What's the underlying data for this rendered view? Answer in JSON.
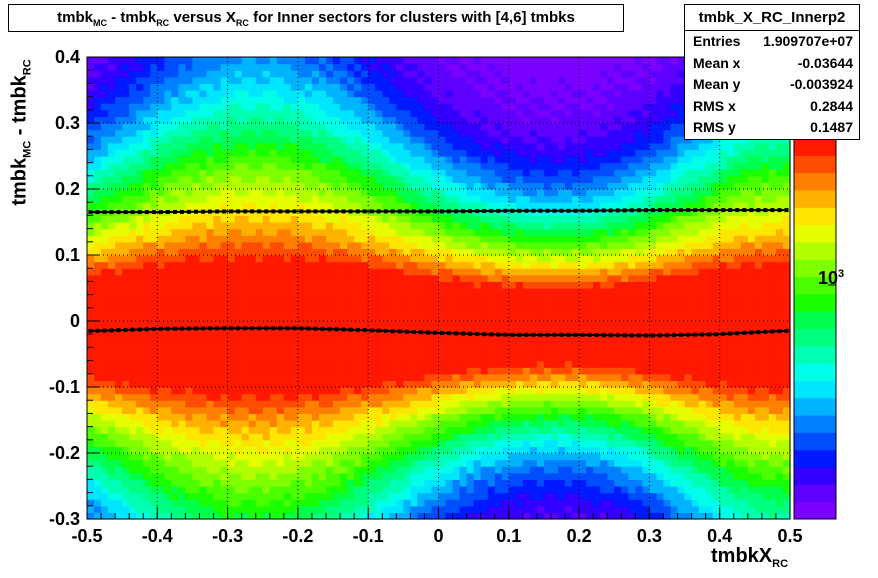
{
  "title": {
    "parts": [
      "tmbk",
      "MC",
      " - tmbk",
      "RC",
      " versus X",
      "RC",
      " for Inner sectors for clusters with [4,6] tmbks"
    ]
  },
  "stats": {
    "name": "tmbk_X_RC_Innerp2",
    "rows": [
      {
        "label": "Entries",
        "value": "1.909707e+07"
      },
      {
        "label": "Mean x",
        "value": "-0.03644"
      },
      {
        "label": "Mean y",
        "value": "-0.003924"
      },
      {
        "label": "RMS x",
        "value": "0.2844"
      },
      {
        "label": "RMS y",
        "value": "0.1487"
      }
    ]
  },
  "axis_labels": {
    "y_main": "tmbk",
    "y_sub1": "MC",
    "y_mid": " - tmbk",
    "y_sub2": "RC",
    "x_main": "tmbkX",
    "x_sub": "RC",
    "z_base": "10",
    "z_exp": "3"
  },
  "colors": {
    "palette": [
      "#7a00ff",
      "#5e00ff",
      "#3300ff",
      "#0019ff",
      "#004cff",
      "#0080ff",
      "#00b3ff",
      "#00e6ff",
      "#00ffe6",
      "#00ffb3",
      "#00ff80",
      "#00ff4c",
      "#19ff00",
      "#4cff00",
      "#80ff00",
      "#b3ff00",
      "#e6ff00",
      "#ffe600",
      "#ffb300",
      "#ff8000",
      "#ff4c00",
      "#ff1900"
    ]
  },
  "chart_data": {
    "type": "heatmap",
    "xlim": [
      -0.5,
      0.5
    ],
    "ylim": [
      -0.3,
      0.4
    ],
    "x_ticks": [
      "-0.5",
      "-0.4",
      "-0.3",
      "-0.2",
      "-0.1",
      "0",
      "0.1",
      "0.2",
      "0.3",
      "0.4",
      "0.5"
    ],
    "y_ticks": [
      "-0.3",
      "-0.2",
      "-0.1",
      "0",
      "0.1",
      "0.2",
      "0.3",
      "0.4"
    ],
    "z_scale": "log",
    "grid": true,
    "profile_mean": {
      "x": [
        -0.49,
        -0.4,
        -0.3,
        -0.2,
        -0.1,
        0.0,
        0.1,
        0.2,
        0.3,
        0.4,
        0.49
      ],
      "y": [
        -0.015,
        -0.012,
        -0.011,
        -0.011,
        -0.014,
        -0.018,
        -0.021,
        -0.021,
        -0.022,
        -0.02,
        -0.015
      ]
    },
    "profile_rms": {
      "x": [
        -0.49,
        -0.4,
        -0.3,
        -0.2,
        -0.1,
        0.0,
        0.1,
        0.2,
        0.3,
        0.4,
        0.49
      ],
      "y": [
        0.165,
        0.165,
        0.166,
        0.166,
        0.166,
        0.166,
        0.167,
        0.167,
        0.168,
        0.168,
        0.168
      ]
    }
  }
}
